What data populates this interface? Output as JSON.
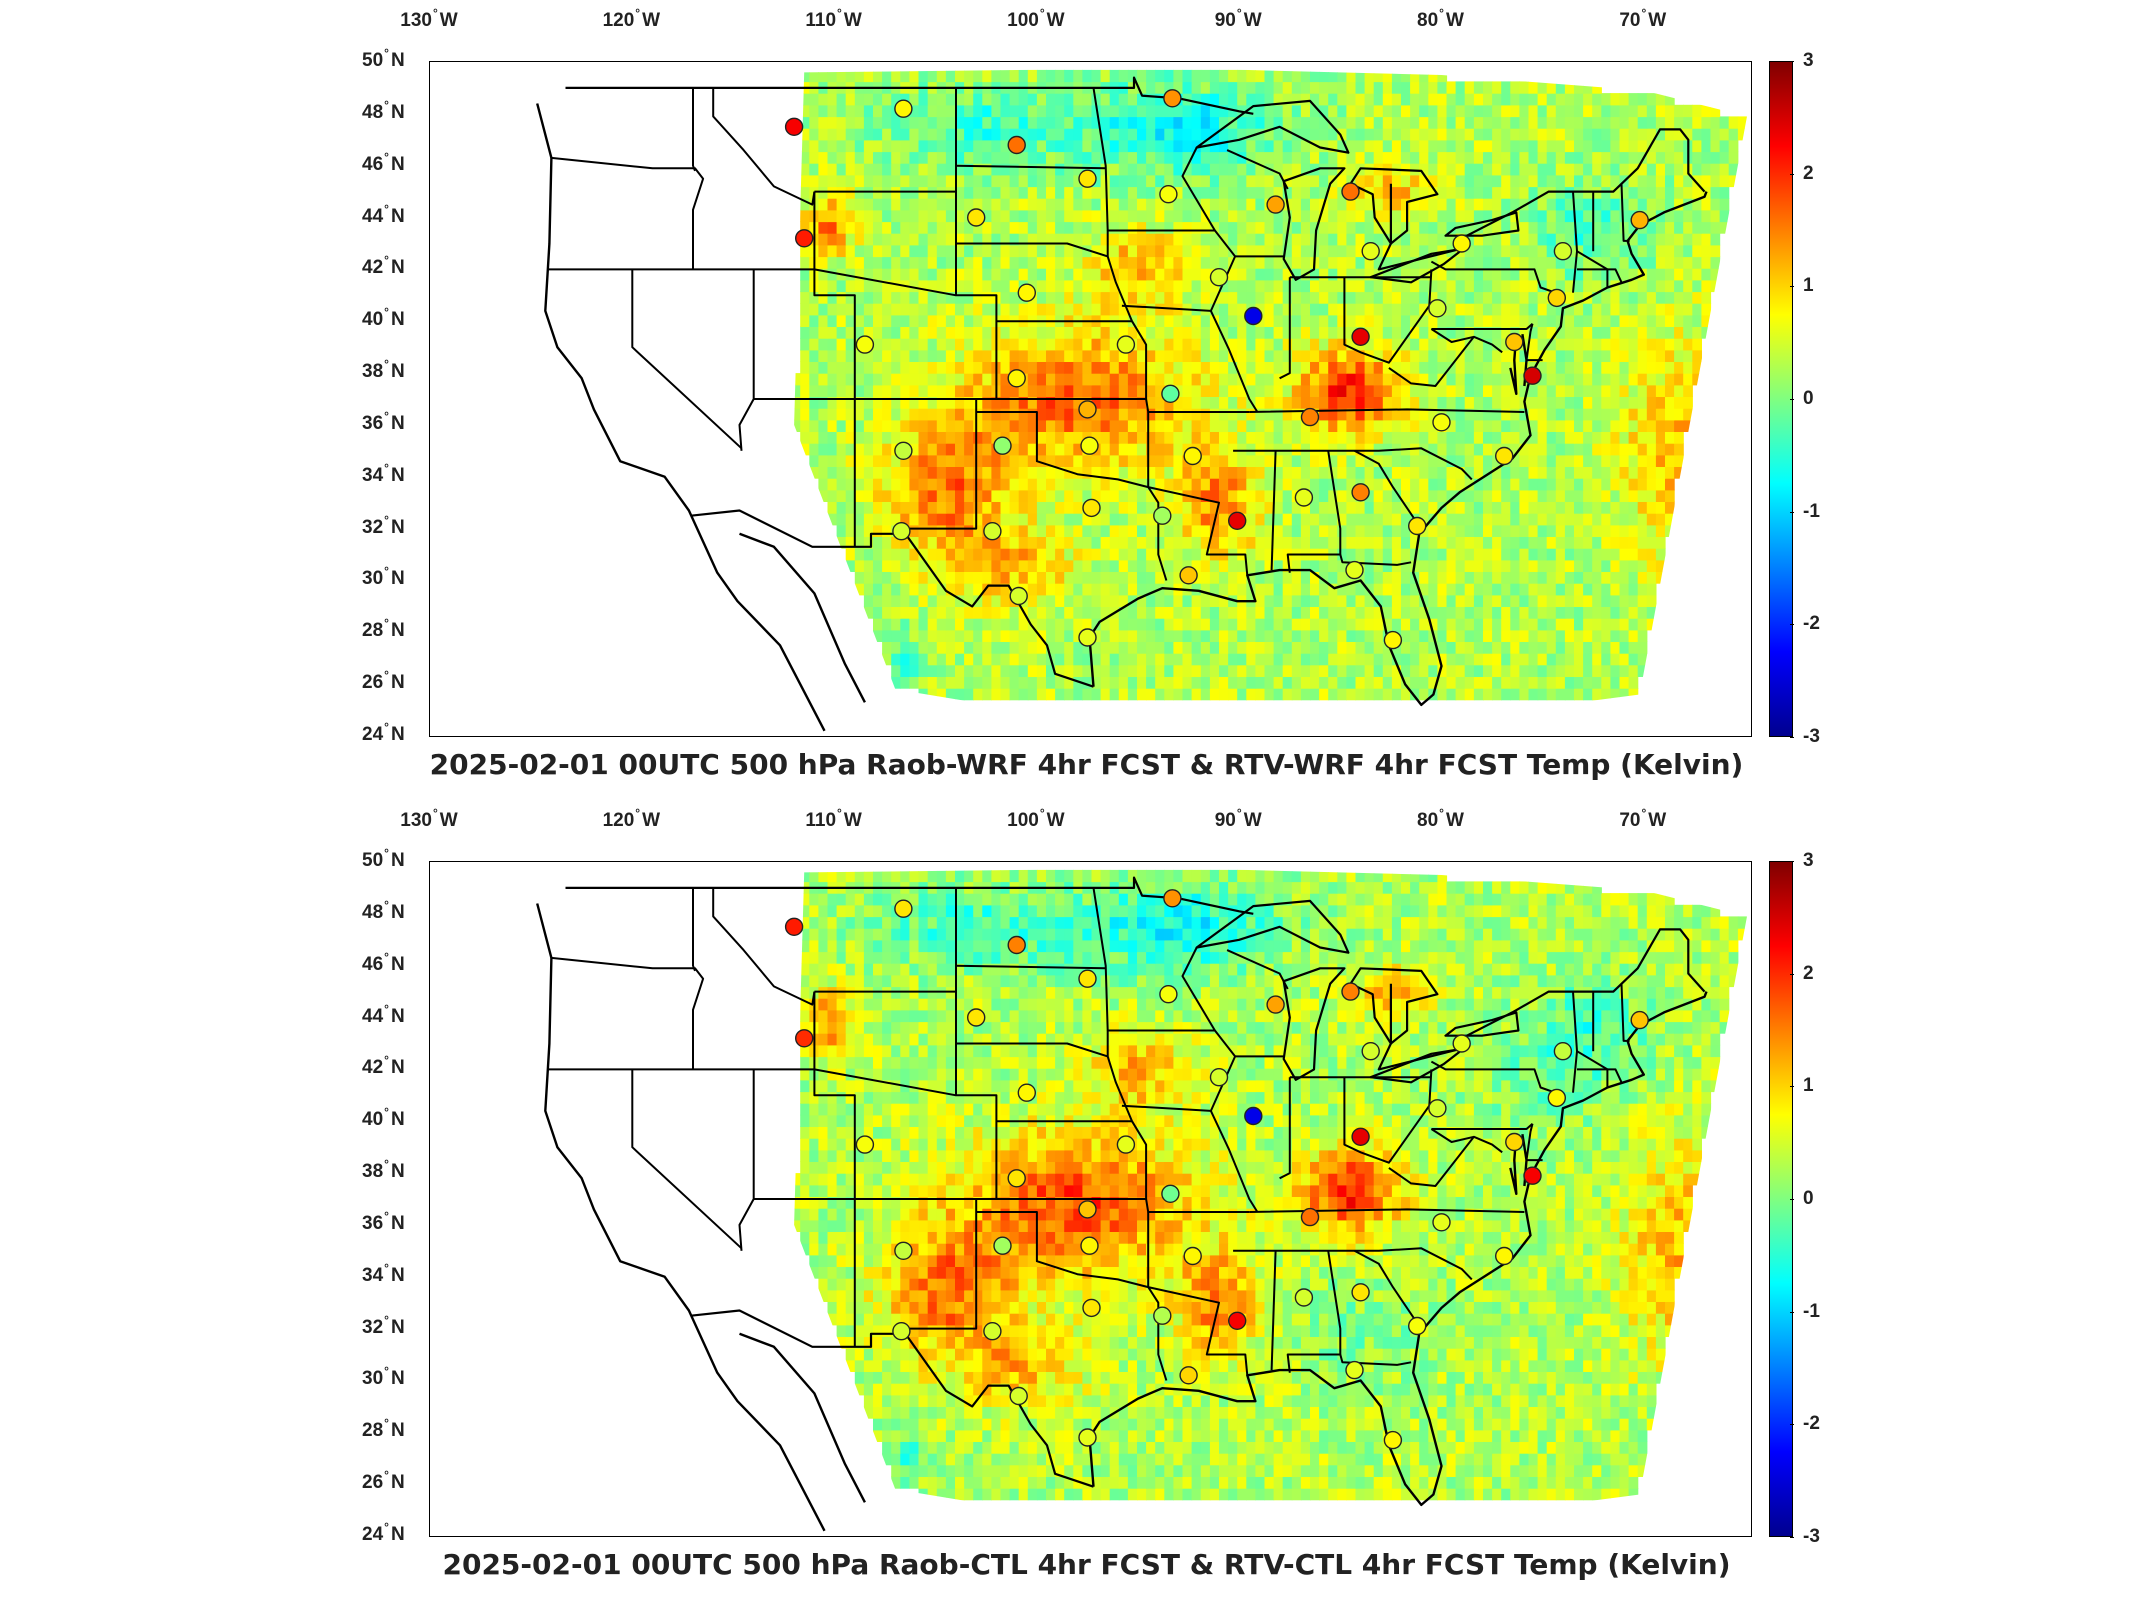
{
  "panels": [
    {
      "id": "top",
      "title": "2025-02-01 00UTC 500 hPa Raob-WRF 4hr FCST & RTV-WRF 4hr FCST Temp (Kelvin)",
      "stations": [
        {
          "lon": -112.0,
          "lat": 47.5,
          "diff": 2.3
        },
        {
          "lon": -106.6,
          "lat": 48.2,
          "diff": 0.8
        },
        {
          "lon": -101.0,
          "lat": 46.8,
          "diff": 1.6
        },
        {
          "lon": -93.3,
          "lat": 48.6,
          "diff": 1.4
        },
        {
          "lon": -97.5,
          "lat": 45.5,
          "diff": 0.9
        },
        {
          "lon": -93.5,
          "lat": 44.9,
          "diff": 0.7
        },
        {
          "lon": -88.2,
          "lat": 44.5,
          "diff": 1.3
        },
        {
          "lon": -84.5,
          "lat": 45.0,
          "diff": 1.6
        },
        {
          "lon": -103.0,
          "lat": 44.0,
          "diff": 0.9
        },
        {
          "lon": -111.5,
          "lat": 43.2,
          "diff": 2.1
        },
        {
          "lon": -83.5,
          "lat": 42.7,
          "diff": 0.6
        },
        {
          "lon": -79.0,
          "lat": 43.0,
          "diff": 0.8
        },
        {
          "lon": -74.0,
          "lat": 42.7,
          "diff": 0.5
        },
        {
          "lon": -70.2,
          "lat": 43.9,
          "diff": 1.2
        },
        {
          "lon": -91.0,
          "lat": 41.7,
          "diff": 0.5
        },
        {
          "lon": -100.5,
          "lat": 41.1,
          "diff": 0.8
        },
        {
          "lon": -89.3,
          "lat": 40.2,
          "diff": -2.4
        },
        {
          "lon": -84.0,
          "lat": 39.4,
          "diff": 2.4
        },
        {
          "lon": -80.2,
          "lat": 40.5,
          "diff": 0.5
        },
        {
          "lon": -74.3,
          "lat": 40.9,
          "diff": 1.0
        },
        {
          "lon": -76.4,
          "lat": 39.2,
          "diff": 1.1
        },
        {
          "lon": -75.5,
          "lat": 37.9,
          "diff": 2.5
        },
        {
          "lon": -108.5,
          "lat": 39.1,
          "diff": 0.7
        },
        {
          "lon": -101.0,
          "lat": 37.8,
          "diff": 0.8
        },
        {
          "lon": -95.6,
          "lat": 39.1,
          "diff": 0.6
        },
        {
          "lon": -93.4,
          "lat": 37.2,
          "diff": -0.2
        },
        {
          "lon": -97.5,
          "lat": 36.6,
          "diff": 1.2
        },
        {
          "lon": -86.5,
          "lat": 36.3,
          "diff": 1.5
        },
        {
          "lon": -80.0,
          "lat": 36.1,
          "diff": 0.7
        },
        {
          "lon": -106.6,
          "lat": 35.0,
          "diff": 0.4
        },
        {
          "lon": -101.7,
          "lat": 35.2,
          "diff": 0.1
        },
        {
          "lon": -97.4,
          "lat": 35.2,
          "diff": 0.7
        },
        {
          "lon": -92.3,
          "lat": 34.8,
          "diff": 0.8
        },
        {
          "lon": -76.9,
          "lat": 34.8,
          "diff": 0.9
        },
        {
          "lon": -86.8,
          "lat": 33.2,
          "diff": 0.6
        },
        {
          "lon": -84.0,
          "lat": 33.4,
          "diff": 1.5
        },
        {
          "lon": -97.3,
          "lat": 32.8,
          "diff": 0.9
        },
        {
          "lon": -93.8,
          "lat": 32.5,
          "diff": 0.2
        },
        {
          "lon": -90.1,
          "lat": 32.3,
          "diff": 2.4
        },
        {
          "lon": -81.2,
          "lat": 32.1,
          "diff": 0.9
        },
        {
          "lon": -106.7,
          "lat": 31.9,
          "diff": 0.5
        },
        {
          "lon": -102.2,
          "lat": 31.9,
          "diff": 0.5
        },
        {
          "lon": -92.5,
          "lat": 30.2,
          "diff": 1.1
        },
        {
          "lon": -84.3,
          "lat": 30.4,
          "diff": 0.6
        },
        {
          "lon": -100.9,
          "lat": 29.4,
          "diff": 0.5
        },
        {
          "lon": -97.5,
          "lat": 27.8,
          "diff": 0.6
        },
        {
          "lon": -82.4,
          "lat": 27.7,
          "diff": 0.8
        }
      ]
    },
    {
      "id": "bottom",
      "title": "2025-02-01 00UTC 500 hPa Raob-CTL 4hr FCST & RTV-CTL 4hr FCST Temp (Kelvin)",
      "stations": [
        {
          "lon": -112.0,
          "lat": 47.5,
          "diff": 2.1
        },
        {
          "lon": -106.6,
          "lat": 48.2,
          "diff": 0.9
        },
        {
          "lon": -101.0,
          "lat": 46.8,
          "diff": 1.5
        },
        {
          "lon": -93.3,
          "lat": 48.6,
          "diff": 1.4
        },
        {
          "lon": -97.5,
          "lat": 45.5,
          "diff": 0.9
        },
        {
          "lon": -93.5,
          "lat": 44.9,
          "diff": 0.7
        },
        {
          "lon": -88.2,
          "lat": 44.5,
          "diff": 1.3
        },
        {
          "lon": -84.5,
          "lat": 45.0,
          "diff": 1.5
        },
        {
          "lon": -103.0,
          "lat": 44.0,
          "diff": 0.9
        },
        {
          "lon": -111.5,
          "lat": 43.2,
          "diff": 2.0
        },
        {
          "lon": -83.5,
          "lat": 42.7,
          "diff": 0.5
        },
        {
          "lon": -79.0,
          "lat": 43.0,
          "diff": 0.6
        },
        {
          "lon": -74.0,
          "lat": 42.7,
          "diff": 0.4
        },
        {
          "lon": -70.2,
          "lat": 43.9,
          "diff": 1.1
        },
        {
          "lon": -91.0,
          "lat": 41.7,
          "diff": 0.5
        },
        {
          "lon": -100.5,
          "lat": 41.1,
          "diff": 0.8
        },
        {
          "lon": -89.3,
          "lat": 40.2,
          "diff": -2.4
        },
        {
          "lon": -84.0,
          "lat": 39.4,
          "diff": 2.4
        },
        {
          "lon": -80.2,
          "lat": 40.5,
          "diff": 0.5
        },
        {
          "lon": -74.3,
          "lat": 40.9,
          "diff": 0.8
        },
        {
          "lon": -76.4,
          "lat": 39.2,
          "diff": 1.0
        },
        {
          "lon": -75.5,
          "lat": 37.9,
          "diff": 2.3
        },
        {
          "lon": -108.5,
          "lat": 39.1,
          "diff": 0.7
        },
        {
          "lon": -101.0,
          "lat": 37.8,
          "diff": 0.9
        },
        {
          "lon": -95.6,
          "lat": 39.1,
          "diff": 0.6
        },
        {
          "lon": -93.4,
          "lat": 37.2,
          "diff": -0.1
        },
        {
          "lon": -97.5,
          "lat": 36.6,
          "diff": 1.1
        },
        {
          "lon": -86.5,
          "lat": 36.3,
          "diff": 1.6
        },
        {
          "lon": -80.0,
          "lat": 36.1,
          "diff": 0.6
        },
        {
          "lon": -106.6,
          "lat": 35.0,
          "diff": 0.4
        },
        {
          "lon": -101.7,
          "lat": 35.2,
          "diff": 0.2
        },
        {
          "lon": -97.4,
          "lat": 35.2,
          "diff": 0.8
        },
        {
          "lon": -92.3,
          "lat": 34.8,
          "diff": 0.8
        },
        {
          "lon": -76.9,
          "lat": 34.8,
          "diff": 0.8
        },
        {
          "lon": -86.8,
          "lat": 33.2,
          "diff": 0.5
        },
        {
          "lon": -84.0,
          "lat": 33.4,
          "diff": 0.9
        },
        {
          "lon": -97.3,
          "lat": 32.8,
          "diff": 0.9
        },
        {
          "lon": -93.8,
          "lat": 32.5,
          "diff": 0.3
        },
        {
          "lon": -90.1,
          "lat": 32.3,
          "diff": 2.3
        },
        {
          "lon": -81.2,
          "lat": 32.1,
          "diff": 0.7
        },
        {
          "lon": -106.7,
          "lat": 31.9,
          "diff": 0.5
        },
        {
          "lon": -102.2,
          "lat": 31.9,
          "diff": 0.5
        },
        {
          "lon": -92.5,
          "lat": 30.2,
          "diff": 1.0
        },
        {
          "lon": -84.3,
          "lat": 30.4,
          "diff": 0.6
        },
        {
          "lon": -100.9,
          "lat": 29.4,
          "diff": 0.5
        },
        {
          "lon": -97.5,
          "lat": 27.8,
          "diff": 0.6
        },
        {
          "lon": -82.4,
          "lat": 27.7,
          "diff": 0.8
        }
      ]
    }
  ],
  "lon_ticks": [
    {
      "value": -130,
      "num": "130",
      "dir": "W"
    },
    {
      "value": -120,
      "num": "120",
      "dir": "W"
    },
    {
      "value": -110,
      "num": "110",
      "dir": "W"
    },
    {
      "value": -100,
      "num": "100",
      "dir": "W"
    },
    {
      "value": -90,
      "num": "90",
      "dir": "W"
    },
    {
      "value": -80,
      "num": "80",
      "dir": "W"
    },
    {
      "value": -70,
      "num": "70",
      "dir": "W"
    }
  ],
  "lat_ticks": [
    {
      "value": 50,
      "num": "50",
      "dir": "N"
    },
    {
      "value": 48,
      "num": "48",
      "dir": "N"
    },
    {
      "value": 46,
      "num": "46",
      "dir": "N"
    },
    {
      "value": 44,
      "num": "44",
      "dir": "N"
    },
    {
      "value": 42,
      "num": "42",
      "dir": "N"
    },
    {
      "value": 40,
      "num": "40",
      "dir": "N"
    },
    {
      "value": 38,
      "num": "38",
      "dir": "N"
    },
    {
      "value": 36,
      "num": "36",
      "dir": "N"
    },
    {
      "value": 34,
      "num": "34",
      "dir": "N"
    },
    {
      "value": 32,
      "num": "32",
      "dir": "N"
    },
    {
      "value": 30,
      "num": "30",
      "dir": "N"
    },
    {
      "value": 28,
      "num": "28",
      "dir": "N"
    },
    {
      "value": 26,
      "num": "26",
      "dir": "N"
    },
    {
      "value": 24,
      "num": "24",
      "dir": "N"
    }
  ],
  "colorbar": {
    "min": -3,
    "max": 3,
    "tick_labels": [
      "3",
      "2",
      "1",
      "0",
      "-1",
      "-2",
      "-3"
    ],
    "tick_values": [
      3,
      2,
      1,
      0,
      -1,
      -2,
      -3
    ],
    "colormap": [
      "#00008f",
      "#0000ff",
      "#0080ff",
      "#00ffff",
      "#80ff80",
      "#ffff00",
      "#ff8000",
      "#ff0000",
      "#800000"
    ]
  },
  "map_extent": {
    "lon_min": -130,
    "lon_max": -64.7,
    "lat_min": 24,
    "lat_max": 50
  }
}
